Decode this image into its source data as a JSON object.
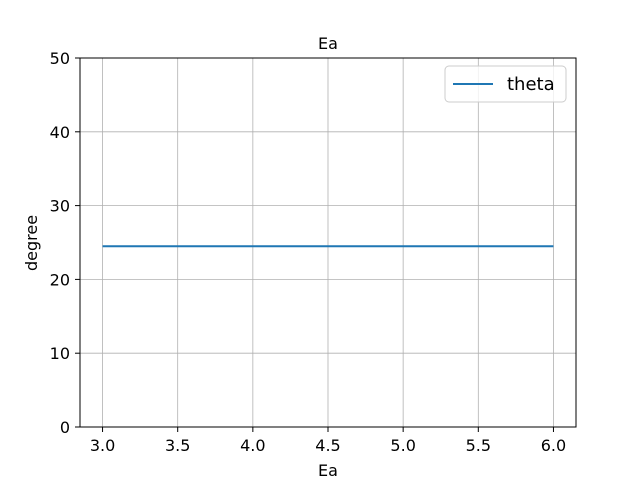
{
  "chart_data": {
    "type": "line",
    "title": "Ea",
    "xlabel": "Ea",
    "ylabel": "degree",
    "xlim": [
      2.85,
      6.15
    ],
    "ylim": [
      0,
      50
    ],
    "xticks": [
      3.0,
      3.5,
      4.0,
      4.5,
      5.0,
      5.5,
      6.0
    ],
    "xtick_labels": [
      "3.0",
      "3.5",
      "4.0",
      "4.5",
      "5.0",
      "5.5",
      "6.0"
    ],
    "yticks": [
      0,
      10,
      20,
      30,
      40,
      50
    ],
    "ytick_labels": [
      "0",
      "10",
      "20",
      "30",
      "40",
      "50"
    ],
    "grid": true,
    "legend_position": "top-right",
    "series": [
      {
        "name": "theta",
        "color": "#1f77b4",
        "x": [
          3.0,
          6.0
        ],
        "y": [
          24.5,
          24.5
        ]
      }
    ]
  }
}
